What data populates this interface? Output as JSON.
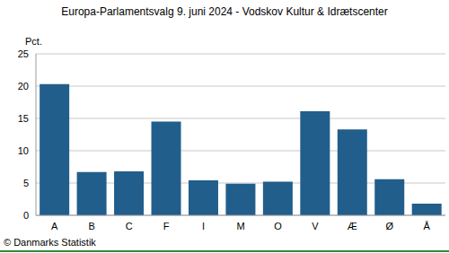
{
  "chart_data": {
    "type": "bar",
    "title": "Europa-Parlamentsvalg 9. juni 2024 - Vodskov Kultur & Idrætscenter",
    "ylabel": "Pct.",
    "annotations": [
      "© Danmarks Statistik"
    ],
    "categories": [
      "A",
      "B",
      "C",
      "F",
      "I",
      "M",
      "O",
      "V",
      "Æ",
      "Ø",
      "Å"
    ],
    "values": [
      20.3,
      6.7,
      6.8,
      14.5,
      5.4,
      4.9,
      5.2,
      16.1,
      13.3,
      5.6,
      1.8
    ],
    "color": "#215e8c",
    "ylim": [
      0,
      25
    ],
    "yticks": [
      0,
      5,
      10,
      15,
      20,
      25
    ],
    "grid": true
  }
}
